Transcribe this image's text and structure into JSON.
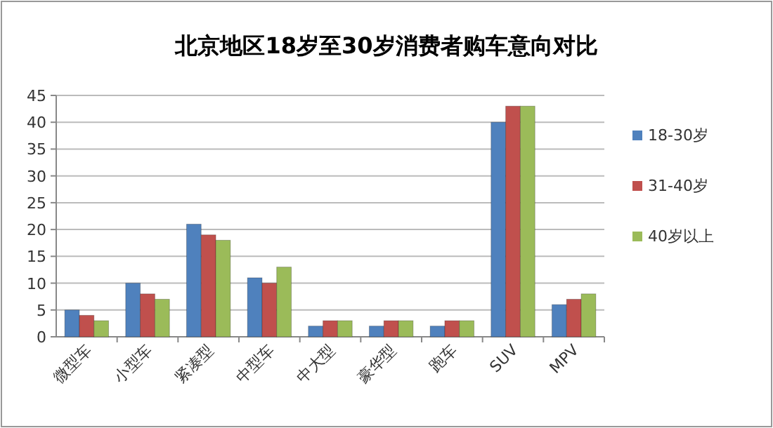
{
  "chart_data": {
    "type": "bar",
    "title": "北京地区18岁至30岁消费者购车意向对比",
    "categories": [
      "微型车",
      "小型车",
      "紧凑型",
      "中型车",
      "中大型",
      "豪华型",
      "跑车",
      "SUV",
      "MPV"
    ],
    "series": [
      {
        "name": "18-30岁",
        "color": "#4f81bd",
        "values": [
          5,
          10,
          21,
          11,
          2,
          2,
          2,
          40,
          6
        ]
      },
      {
        "name": "31-40岁",
        "color": "#c0504d",
        "values": [
          4,
          8,
          19,
          10,
          3,
          3,
          3,
          43,
          7
        ]
      },
      {
        "name": "40岁以上",
        "color": "#9bbb59",
        "values": [
          3,
          7,
          18,
          13,
          3,
          3,
          3,
          43,
          8
        ]
      }
    ],
    "ylim": [
      0,
      45
    ],
    "yticks": [
      0,
      5,
      10,
      15,
      20,
      25,
      30,
      35,
      40,
      45
    ],
    "grid": "y",
    "legend": "right"
  }
}
